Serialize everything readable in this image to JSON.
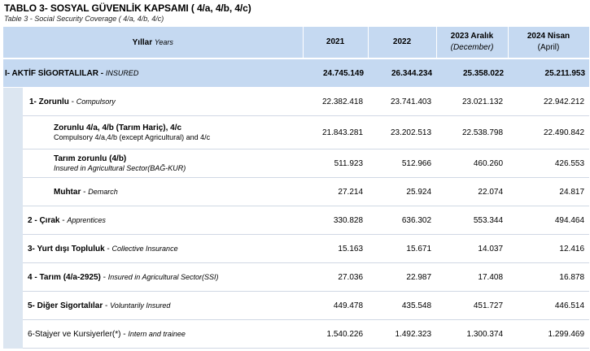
{
  "title": "TABLO 3- SOSYAL GÜVENLİK KAPSAMI ( 4/a, 4/b, 4/c)",
  "subtitle": "Table  3 - Social Security Coverage ( 4/a, 4/b, 4/c)",
  "header": {
    "label_tr": "Yıllar",
    "label_en": "Years",
    "years": [
      {
        "main": "2021",
        "sub": ""
      },
      {
        "main": "2022",
        "sub": ""
      },
      {
        "main": "2023 Aralık",
        "sub": "(December)"
      },
      {
        "main": "2024 Nisan",
        "sub": "(April)"
      }
    ]
  },
  "rows": [
    {
      "tr": "I- AKTİF SİGORTALILAR",
      "en": "INSURED",
      "values": [
        "24.745.149",
        "26.344.234",
        "25.358.022",
        "25.211.953"
      ]
    },
    {
      "tr": "1-  Zorunlu",
      "en": "Compulsory",
      "values": [
        "22.382.418",
        "23.741.403",
        "23.021.132",
        "22.942.212"
      ]
    },
    {
      "tr": "Zorunlu 4/a, 4/b (Tarım Hariç), 4/c",
      "en": "Compulsory 4/a,4/b (except Agricultural) and 4/c",
      "values": [
        "21.843.281",
        "23.202.513",
        "22.538.798",
        "22.490.842"
      ]
    },
    {
      "tr": "Tarım zorunlu (4/b)",
      "en": "Insured in Agricultural Sector(BAĞ-KUR)",
      "values": [
        "511.923",
        "512.966",
        "460.260",
        "426.553"
      ]
    },
    {
      "tr": "Muhtar",
      "en": "Demarch",
      "values": [
        "27.214",
        "25.924",
        "22.074",
        "24.817"
      ]
    },
    {
      "tr": "2 - Çırak",
      "en": "Apprentices",
      "values": [
        "330.828",
        "636.302",
        "553.344",
        "494.464"
      ]
    },
    {
      "tr": "3-  Yurt dışı Topluluk",
      "en": "Collective Insurance",
      "values": [
        "15.163",
        "15.671",
        "14.037",
        "12.416"
      ]
    },
    {
      "tr": "4 - Tarım (4/a-2925)",
      "en": "Insured in Agricultural Sector(SSI)",
      "values": [
        "27.036",
        "22.987",
        "17.408",
        "16.878"
      ]
    },
    {
      "tr": "5- Diğer Sigortalılar",
      "en": "Voluntarily Insured",
      "values": [
        "449.478",
        "435.548",
        "451.727",
        "446.514"
      ]
    },
    {
      "tr": "6-Stajyer ve Kursiyerler(*)",
      "en": "Intern and trainee",
      "values": [
        "1.540.226",
        "1.492.323",
        "1.300.374",
        "1.299.469"
      ]
    }
  ]
}
